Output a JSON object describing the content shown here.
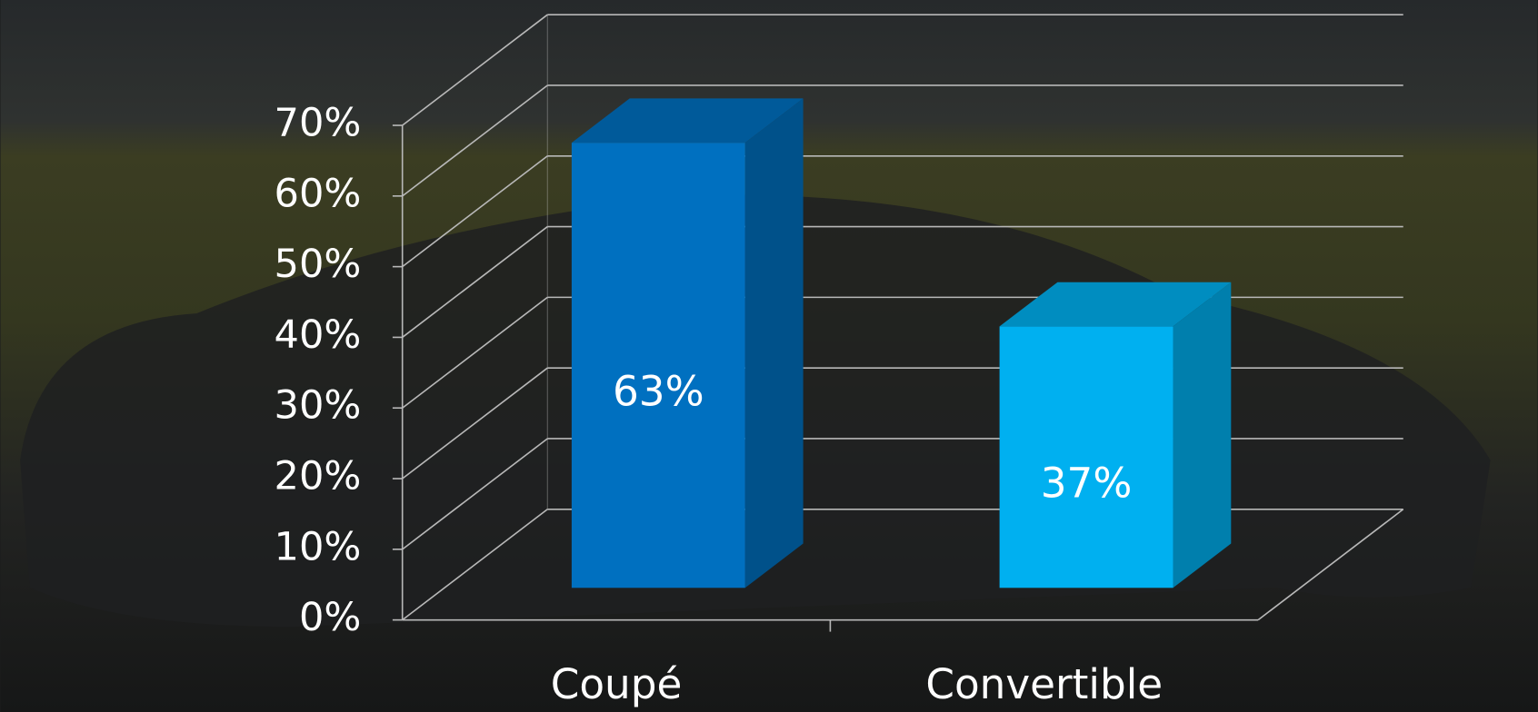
{
  "chart_data": {
    "type": "bar3d",
    "categories": [
      "Coupé",
      "Convertible"
    ],
    "values": [
      63,
      37
    ],
    "value_labels": [
      "63%",
      "37%"
    ],
    "colors": [
      "#0070c0",
      "#00b0f0"
    ],
    "ylim": [
      0,
      70
    ],
    "yticks": [
      {
        "value": 0,
        "label": "0%"
      },
      {
        "value": 10,
        "label": "10%"
      },
      {
        "value": 20,
        "label": "20%"
      },
      {
        "value": 30,
        "label": "30%"
      },
      {
        "value": 40,
        "label": "40%"
      },
      {
        "value": 50,
        "label": "50%"
      },
      {
        "value": 60,
        "label": "60%"
      },
      {
        "value": 70,
        "label": "70%"
      }
    ],
    "grid": true
  }
}
